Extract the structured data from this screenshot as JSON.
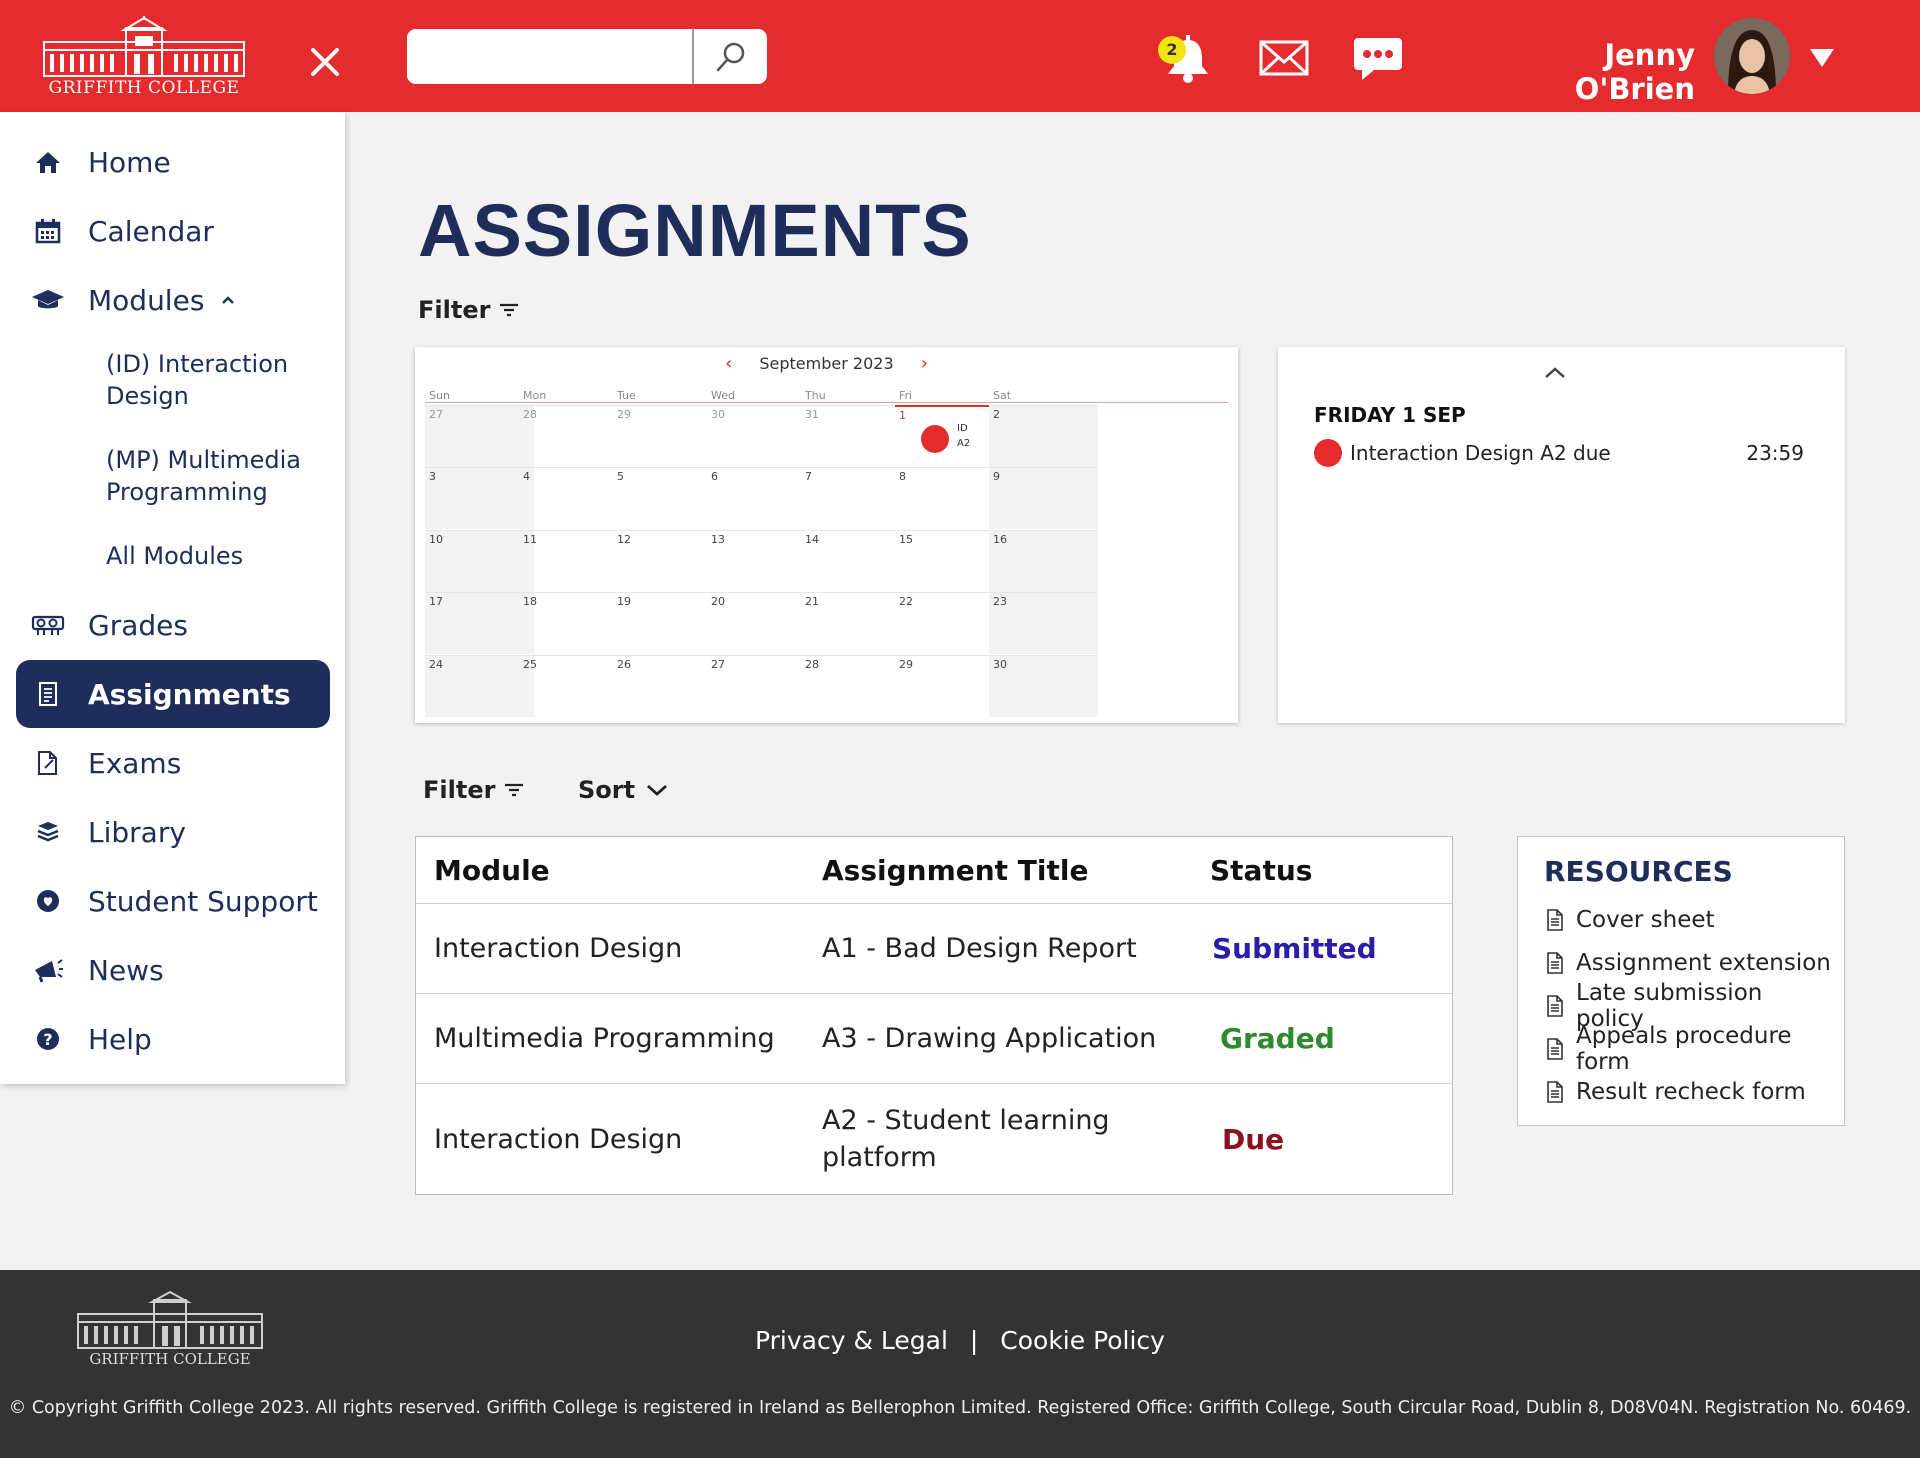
{
  "colors": {
    "brand_red": "#e42b2d",
    "navy": "#1e2d5a",
    "submitted": "#2a1ea8",
    "graded": "#2e8a2c",
    "due": "#8b1020",
    "footer": "#333333"
  },
  "header": {
    "logo_text": "GRIFFITH COLLEGE",
    "search_placeholder": "",
    "notification_count": "2",
    "user_name": "Jenny O'Brien",
    "icons": [
      "close-icon",
      "search-icon",
      "bell-icon",
      "mail-icon",
      "chat-icon",
      "chevron-down-icon"
    ]
  },
  "sidebar": {
    "items": [
      {
        "label": "Home",
        "icon": "home-icon"
      },
      {
        "label": "Calendar",
        "icon": "calendar-icon"
      },
      {
        "label": "Modules",
        "icon": "graduation-cap-icon"
      },
      {
        "label": "Grades",
        "icon": "grades-icon"
      },
      {
        "label": "Assignments",
        "icon": "assignment-icon",
        "active": true
      },
      {
        "label": "Exams",
        "icon": "exam-icon"
      },
      {
        "label": "Library",
        "icon": "library-icon"
      },
      {
        "label": "Student Support",
        "icon": "support-icon"
      },
      {
        "label": "News",
        "icon": "megaphone-icon"
      },
      {
        "label": "Help",
        "icon": "help-icon"
      }
    ],
    "modules_sub": [
      "(ID) Interaction Design",
      "(MP) Multimedia Programming",
      "All Modules"
    ]
  },
  "main": {
    "title": "ASSIGNMENTS",
    "filter_label": "Filter",
    "sort_label": "Sort"
  },
  "calendar": {
    "month_label": "September 2023",
    "day_names": [
      "Sun",
      "Mon",
      "Tue",
      "Wed",
      "Thu",
      "Fri",
      "Sat"
    ],
    "weeks": [
      [
        "27",
        "28",
        "29",
        "30",
        "31",
        "1",
        "2"
      ],
      [
        "3",
        "4",
        "5",
        "6",
        "7",
        "8",
        "9"
      ],
      [
        "10",
        "11",
        "12",
        "13",
        "14",
        "15",
        "16"
      ],
      [
        "17",
        "18",
        "19",
        "20",
        "21",
        "22",
        "23"
      ],
      [
        "24",
        "25",
        "26",
        "27",
        "28",
        "29",
        "30"
      ]
    ],
    "event_label_line1": "ID",
    "event_label_line2": "A2"
  },
  "event_panel": {
    "date": "FRIDAY 1 SEP",
    "event_title": "Interaction Design A2 due",
    "event_time": "23:59"
  },
  "table": {
    "headers": [
      "Module",
      "Assignment Title",
      "Status"
    ],
    "rows": [
      {
        "module": "Interaction Design",
        "title": "A1 - Bad Design Report",
        "status": "Submitted"
      },
      {
        "module": "Multimedia Programming",
        "title": "A3 - Drawing Application",
        "status": "Graded"
      },
      {
        "module": "Interaction Design",
        "title": "A2 - Student learning platform",
        "status": "Due"
      }
    ]
  },
  "resources": {
    "title": "RESOURCES",
    "items": [
      "Cover sheet",
      "Assignment extension",
      "Late submission policy",
      "Appeals procedure form",
      "Result recheck form"
    ]
  },
  "footer": {
    "logo_text": "GRIFFITH COLLEGE",
    "privacy_link": "Privacy & Legal",
    "separator": "|",
    "cookie_link": "Cookie Policy",
    "copyright": "© Copyright Griffith College 2023. All rights reserved. Griffith College is registered in Ireland as Bellerophon Limited. Registered Office: Griffith College, South Circular Road, Dublin 8, D08V04N. Registration No. 60469."
  }
}
